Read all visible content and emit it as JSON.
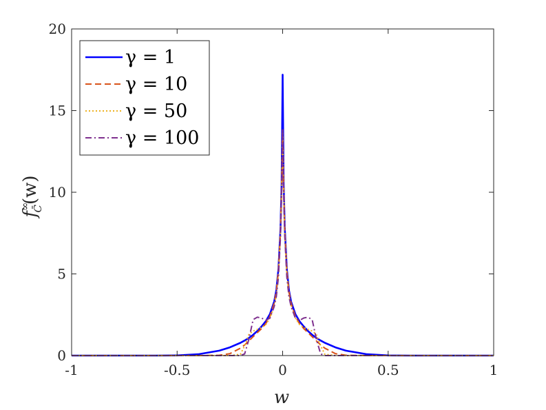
{
  "chart_data": {
    "type": "line",
    "xlabel": "w",
    "ylabel": "f",
    "ylabel_sup": "∞",
    "ylabel_sub": "C̄",
    "ylabel_tail": "(w)",
    "xlim": [
      -1,
      1
    ],
    "ylim": [
      0,
      20
    ],
    "xticks": [
      -1,
      -0.5,
      0,
      0.5,
      1
    ],
    "xtick_labels": [
      "-1",
      "-0.5",
      "0",
      "0.5",
      "1"
    ],
    "yticks": [
      0,
      5,
      10,
      15,
      20
    ],
    "ytick_labels": [
      "0",
      "5",
      "10",
      "15",
      "20"
    ],
    "grid": false,
    "legend_position": "top-left",
    "x": [
      -1,
      -0.6,
      -0.5,
      -0.4,
      -0.3,
      -0.25,
      -0.2,
      -0.18,
      -0.16,
      -0.14,
      -0.12,
      -0.1,
      -0.08,
      -0.06,
      -0.04,
      -0.03,
      -0.02,
      -0.01,
      -0.005,
      0,
      0.005,
      0.01,
      0.02,
      0.03,
      0.04,
      0.06,
      0.08,
      0.1,
      0.12,
      0.14,
      0.16,
      0.18,
      0.2,
      0.25,
      0.3,
      0.4,
      0.5,
      0.6,
      1
    ],
    "series": [
      {
        "name": "γ = 1",
        "color": "#0000ff",
        "dash": "solid",
        "values": [
          0,
          0,
          0.01,
          0.08,
          0.3,
          0.5,
          0.78,
          0.92,
          1.08,
          1.27,
          1.5,
          1.78,
          2.1,
          2.55,
          3.3,
          4.0,
          5.3,
          7.8,
          10.5,
          17.2,
          10.5,
          7.8,
          5.3,
          4.0,
          3.3,
          2.55,
          2.1,
          1.78,
          1.5,
          1.27,
          1.08,
          0.92,
          0.78,
          0.5,
          0.3,
          0.08,
          0.01,
          0,
          0
        ]
      },
      {
        "name": "γ = 10",
        "color": "#d95319",
        "dash": "dashed",
        "values": [
          0,
          0,
          0,
          0,
          0.02,
          0.12,
          0.45,
          0.65,
          0.9,
          1.15,
          1.4,
          1.65,
          1.95,
          2.4,
          3.2,
          3.9,
          5.2,
          7.7,
          10.3,
          13.7,
          10.3,
          7.7,
          5.2,
          3.9,
          3.2,
          2.4,
          1.95,
          1.65,
          1.4,
          1.15,
          0.9,
          0.65,
          0.45,
          0.12,
          0.02,
          0,
          0,
          0,
          0
        ]
      },
      {
        "name": "γ = 50",
        "color": "#edb120",
        "dash": "dotted",
        "values": [
          0,
          0,
          0,
          0,
          0,
          0,
          0.08,
          0.6,
          1.3,
          1.5,
          1.6,
          1.72,
          1.9,
          2.3,
          3.0,
          3.7,
          5.0,
          7.5,
          10.2,
          13.8,
          10.2,
          7.5,
          5.0,
          3.7,
          3.0,
          2.3,
          1.9,
          1.72,
          1.6,
          1.5,
          1.3,
          0.6,
          0.08,
          0,
          0,
          0,
          0,
          0,
          0
        ]
      },
      {
        "name": "γ = 100",
        "color": "#7e2f8e",
        "dash": "dashdot",
        "values": [
          0,
          0,
          0,
          0,
          0,
          0,
          0,
          0.1,
          1.0,
          2.2,
          2.35,
          2.3,
          2.15,
          2.3,
          3.0,
          3.6,
          4.8,
          7.3,
          10.0,
          13.9,
          10.0,
          7.3,
          4.8,
          3.6,
          3.0,
          2.3,
          2.15,
          2.3,
          2.35,
          2.2,
          1.0,
          0.1,
          0,
          0,
          0,
          0,
          0,
          0,
          0
        ]
      }
    ]
  }
}
